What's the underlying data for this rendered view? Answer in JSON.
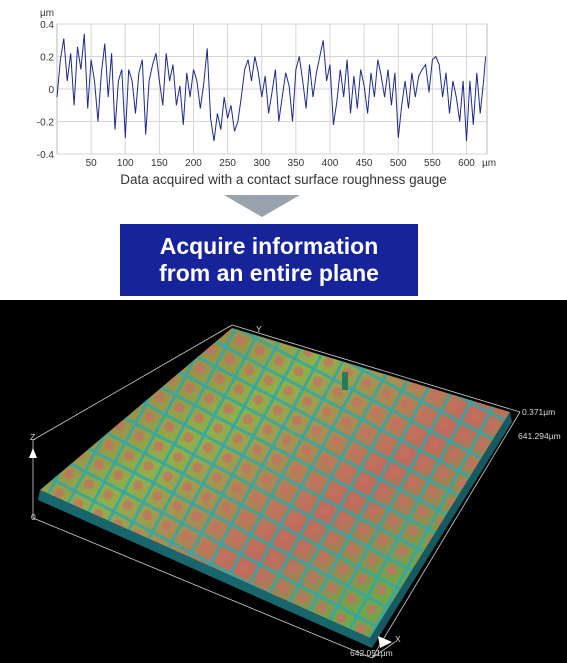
{
  "chart_data": {
    "type": "line",
    "ylabel": "µm",
    "xlabel": "µm",
    "xlim": [
      0,
      630
    ],
    "ylim": [
      -0.4,
      0.4
    ],
    "x_ticks": [
      50,
      100,
      150,
      200,
      250,
      300,
      350,
      400,
      450,
      500,
      550,
      600
    ],
    "y_ticks": [
      {
        "value": 0.4,
        "label": "0.4"
      },
      {
        "value": 0.2,
        "label": "0.2"
      },
      {
        "value": 0,
        "label": "0"
      },
      {
        "value": -0.2,
        "label": "-0.2"
      },
      {
        "value": -0.4,
        "label": "-0.4"
      }
    ],
    "grid": true,
    "color": "#1e2a8a",
    "series": [
      {
        "x": [
          0,
          5,
          10,
          15,
          20,
          25,
          30,
          35,
          40,
          45,
          50,
          55,
          60,
          65,
          70,
          75,
          80,
          85,
          90,
          95,
          100,
          105,
          110,
          115,
          120,
          125,
          130,
          135,
          140,
          145,
          150,
          155,
          160,
          165,
          170,
          175,
          180,
          185,
          190,
          195,
          200,
          205,
          210,
          215,
          220,
          225,
          230,
          235,
          240,
          245,
          250,
          255,
          260,
          265,
          270,
          275,
          280,
          285,
          290,
          295,
          300,
          305,
          310,
          315,
          320,
          325,
          330,
          335,
          340,
          345,
          350,
          355,
          360,
          365,
          370,
          375,
          380,
          385,
          390,
          395,
          400,
          405,
          410,
          415,
          420,
          425,
          430,
          435,
          440,
          445,
          450,
          455,
          460,
          465,
          470,
          475,
          480,
          485,
          490,
          495,
          500,
          505,
          510,
          515,
          520,
          525,
          530,
          535,
          540,
          545,
          550,
          555,
          560,
          565,
          570,
          575,
          580,
          585,
          590,
          595,
          600,
          605,
          610,
          615,
          620,
          625,
          628
        ],
        "y": [
          -0.05,
          0.18,
          0.31,
          0.05,
          0.22,
          -0.1,
          0.26,
          0.12,
          0.34,
          -0.12,
          0.18,
          0.05,
          -0.2,
          0.1,
          0.28,
          -0.05,
          0.22,
          -0.25,
          0.05,
          0.12,
          -0.3,
          0.12,
          0.05,
          -0.15,
          0.1,
          0.18,
          -0.28,
          0.05,
          0.15,
          0.22,
          0.05,
          -0.1,
          0.22,
          0.05,
          0.15,
          -0.1,
          0.02,
          -0.22,
          0.1,
          -0.05,
          0.12,
          0.05,
          -0.12,
          0.03,
          0.25,
          -0.18,
          -0.32,
          -0.15,
          -0.25,
          -0.05,
          -0.18,
          -0.1,
          -0.26,
          -0.2,
          -0.05,
          0.12,
          0.18,
          0.05,
          0.2,
          0.1,
          -0.05,
          0.08,
          -0.15,
          -0.02,
          0.12,
          -0.2,
          -0.05,
          0.1,
          0.02,
          -0.2,
          0.12,
          0.2,
          0.05,
          -0.12,
          0.15,
          -0.05,
          0.1,
          0.2,
          0.3,
          0.05,
          0.15,
          -0.22,
          -0.08,
          0.12,
          -0.05,
          0.18,
          -0.15,
          0.08,
          -0.12,
          0.12,
          0.02,
          -0.15,
          0.1,
          -0.05,
          0.18,
          0.08,
          -0.05,
          0.12,
          -0.1,
          0.1,
          -0.3,
          -0.1,
          0.05,
          -0.12,
          0.1,
          -0.05,
          0.08,
          0.12,
          0.15,
          -0.02,
          0.18,
          0.2,
          0.15,
          -0.05,
          0.1,
          -0.15,
          0.05,
          -0.05,
          -0.2,
          0.05,
          -0.32,
          0.05,
          -0.22,
          0.1,
          -0.15,
          0.05,
          0.2
        ]
      }
    ]
  },
  "caption": "Data acquired with a contact surface roughness gauge",
  "banner": {
    "line1": "Acquire information",
    "line2": "from an entire plane"
  },
  "surface": {
    "axis_z": "Z",
    "axis_y": "Y",
    "axis_x": "X",
    "z_zero": "0",
    "z_max": "0.371µm",
    "y_size": "641.294µm",
    "x_size": "642.051µm"
  }
}
